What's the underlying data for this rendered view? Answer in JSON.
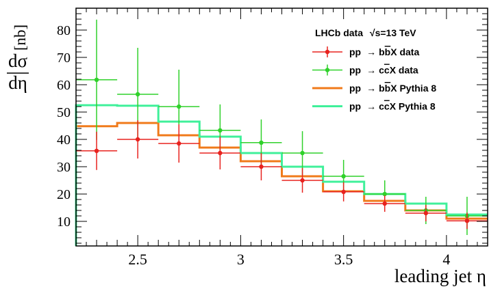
{
  "chart_data": {
    "type": "histogram-with-errorbars",
    "experiment_label": "LHCb data",
    "energy_label": "√s=13 TeV",
    "ylabel": {
      "numerator": "dσ",
      "denominator": "dη",
      "unit": "[nb]"
    },
    "xlabel": "leading jet η",
    "xlim": [
      2.2,
      4.2
    ],
    "ylim": [
      1,
      88
    ],
    "x_ticks": [
      2.5,
      3,
      3.5,
      4
    ],
    "x_tick_labels": [
      "2.5",
      "3",
      "3.5",
      "4"
    ],
    "y_ticks": [
      10,
      20,
      30,
      40,
      50,
      60,
      70,
      80
    ],
    "y_tick_labels": [
      "10",
      "20",
      "30",
      "40",
      "50",
      "60",
      "70",
      "80"
    ],
    "bin_edges": [
      2.2,
      2.4,
      2.6,
      2.8,
      3.0,
      3.2,
      3.4,
      3.6,
      3.8,
      4.0,
      4.2
    ],
    "bin_centers": [
      2.3,
      2.5,
      2.7,
      2.9,
      3.1,
      3.3,
      3.5,
      3.7,
      3.9,
      4.1
    ],
    "series": [
      {
        "name": "bbX data",
        "kind": "points",
        "color": "#e8221e",
        "values": [
          35.8,
          40,
          38.5,
          35,
          30,
          25,
          20.8,
          16.5,
          13,
          10.2
        ],
        "err_low": [
          7,
          7,
          7,
          6,
          5,
          4.5,
          3.5,
          3,
          3,
          3
        ],
        "err_high": [
          7,
          7,
          7,
          6,
          5,
          4.5,
          3.5,
          3,
          3,
          3
        ]
      },
      {
        "name": "ccX data",
        "kind": "points",
        "color": "#2fd12a",
        "values": [
          61.8,
          56.5,
          52,
          43.3,
          38.8,
          35,
          26.5,
          20,
          14,
          12
        ],
        "err_low": [
          22,
          17,
          13.5,
          9.5,
          8.5,
          8,
          6,
          5,
          5,
          7
        ],
        "err_high": [
          22,
          17,
          13.5,
          9.5,
          8.5,
          8,
          6,
          5,
          5,
          7
        ]
      },
      {
        "name": "bbX Pythia 8",
        "kind": "step",
        "color": "#f07a1a",
        "values": [
          44.8,
          46,
          41.5,
          37,
          32,
          26.5,
          21,
          17.5,
          14,
          11
        ]
      },
      {
        "name": "ccX Pythia 8",
        "kind": "step",
        "color": "#3ff09a",
        "values": [
          52.5,
          52.3,
          46.5,
          41,
          35,
          30,
          24.5,
          20,
          16.5,
          12.5
        ]
      }
    ],
    "legend": {
      "placement": "top-right",
      "prefix": "pp",
      "arrow": "→",
      "entries": [
        {
          "series": 0,
          "quark": "b",
          "antiquark": "b",
          "tail": "X data"
        },
        {
          "series": 1,
          "quark": "c",
          "antiquark": "c",
          "tail": "X data"
        },
        {
          "series": 2,
          "quark": "b",
          "antiquark": "b",
          "tail": "X Pythia 8"
        },
        {
          "series": 3,
          "quark": "c",
          "antiquark": "c",
          "tail": "X Pythia 8"
        }
      ]
    }
  }
}
